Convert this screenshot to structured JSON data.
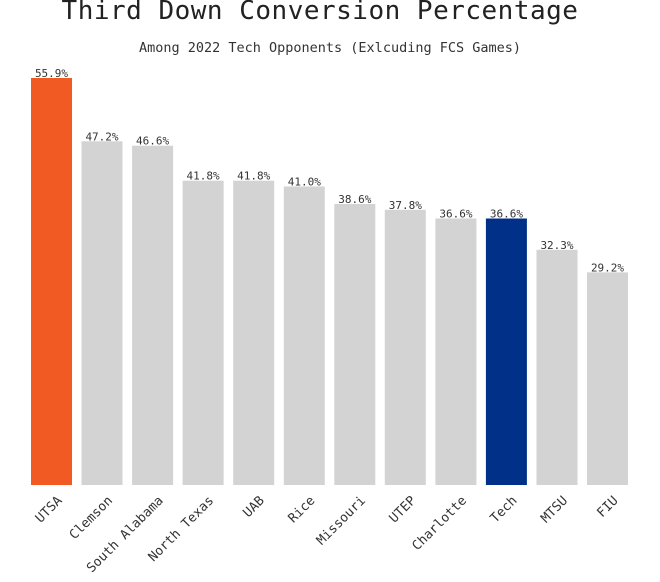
{
  "chart_data": {
    "type": "bar",
    "title": "Third Down Conversion Percentage",
    "subtitle": "Among 2022 Tech Opponents (Exlcuding FCS Games)",
    "categories": [
      "UTSA",
      "Clemson",
      "South Alabama",
      "North Texas",
      "UAB",
      "Rice",
      "Missouri",
      "UTEP",
      "Charlotte",
      "Tech",
      "MTSU",
      "FIU"
    ],
    "values": [
      55.9,
      47.2,
      46.6,
      41.8,
      41.8,
      41.0,
      38.6,
      37.8,
      36.6,
      36.6,
      32.3,
      29.2
    ],
    "value_labels": [
      "55.9%",
      "47.2%",
      "46.6%",
      "41.8%",
      "41.8%",
      "41.0%",
      "38.6%",
      "37.8%",
      "36.6%",
      "36.6%",
      "32.3%",
      "29.2%"
    ],
    "bar_colors": [
      "#F15A22",
      "#D3D3D3",
      "#D3D3D3",
      "#D3D3D3",
      "#D3D3D3",
      "#D3D3D3",
      "#D3D3D3",
      "#D3D3D3",
      "#D3D3D3",
      "#003087",
      "#D3D3D3",
      "#D3D3D3"
    ],
    "xlabel": "",
    "ylabel": "",
    "ylim": [
      0,
      55.9
    ],
    "grid": false,
    "legend": "none"
  }
}
